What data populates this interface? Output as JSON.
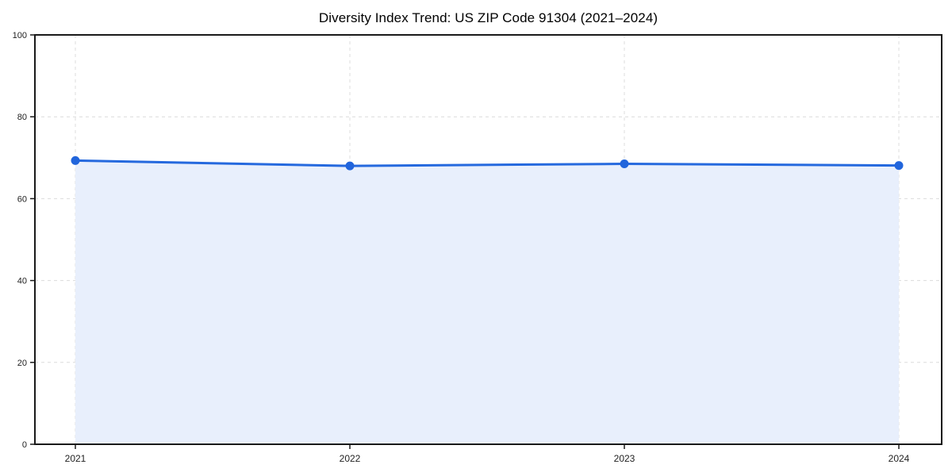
{
  "chart_data": {
    "type": "area",
    "title": "Diversity Index Trend: US ZIP Code 91304 (2021–2024)",
    "x": [
      "2021",
      "2022",
      "2023",
      "2024"
    ],
    "values": [
      69.3,
      68.0,
      68.5,
      68.1
    ],
    "xlabel": "",
    "ylabel": "",
    "ylim": [
      0,
      100
    ],
    "yticks": [
      0,
      20,
      40,
      60,
      80,
      100
    ],
    "grid": "dashed-both-axes",
    "legend_position": "none",
    "marker": "circle",
    "colors": {
      "line": "#2569de",
      "marker": "#2165dc",
      "fill": "#e8effc",
      "grid": "#dcdcdc",
      "axis": "#1a1a1a",
      "tick_text": "#222222",
      "background": "#ffffff"
    }
  }
}
